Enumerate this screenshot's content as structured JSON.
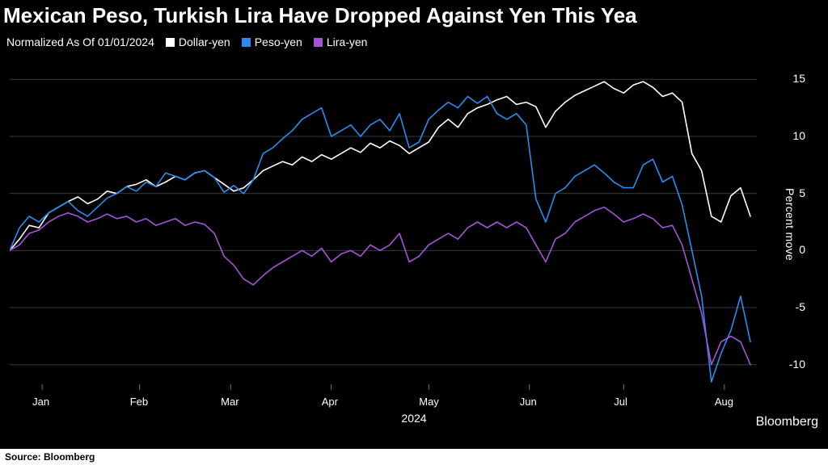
{
  "title": "Mexican Peso, Turkish Lira Have Dropped Against Yen This Yea",
  "subtitle": "Normalized As Of 01/01/2024",
  "legend": {
    "items": [
      {
        "label": "Dollar-yen",
        "color": "#ffffff"
      },
      {
        "label": "Peso-yen",
        "color": "#2a8cf0"
      },
      {
        "label": "Lira-yen",
        "color": "#a554d8"
      }
    ]
  },
  "source_label": "Source: Bloomberg",
  "brand": "Bloomberg",
  "chart": {
    "type": "line",
    "background_color": "#000000",
    "grid_color": "#3a3a3a",
    "grid_width": 1,
    "line_width": 1.6,
    "title_fontsize": 26,
    "label_fontsize": 14,
    "tick_fontsize": 14,
    "x": {
      "domain": [
        0,
        230
      ],
      "ticks": [
        {
          "pos": 10,
          "label": "Jan"
        },
        {
          "pos": 40,
          "label": "Feb"
        },
        {
          "pos": 68,
          "label": "Mar"
        },
        {
          "pos": 99,
          "label": "Apr"
        },
        {
          "pos": 129,
          "label": "May"
        },
        {
          "pos": 160,
          "label": "Jun"
        },
        {
          "pos": 189,
          "label": "Jul"
        },
        {
          "pos": 220,
          "label": "Aug"
        }
      ],
      "year_label": "2024"
    },
    "y": {
      "domain": [
        -12,
        17
      ],
      "ticks": [
        15,
        10,
        5,
        0,
        -5,
        -10
      ],
      "axis_label": "Percent move"
    },
    "series": [
      {
        "name": "Dollar-yen",
        "color": "#ffffff",
        "x": [
          0,
          3,
          6,
          9,
          12,
          15,
          18,
          21,
          24,
          27,
          30,
          33,
          36,
          39,
          42,
          45,
          48,
          51,
          54,
          57,
          60,
          63,
          66,
          69,
          72,
          75,
          78,
          81,
          84,
          87,
          90,
          93,
          96,
          99,
          102,
          105,
          108,
          111,
          114,
          117,
          120,
          123,
          126,
          129,
          132,
          135,
          138,
          141,
          144,
          147,
          150,
          153,
          156,
          159,
          162,
          165,
          168,
          171,
          174,
          177,
          180,
          183,
          186,
          189,
          192,
          195,
          198,
          201,
          204,
          207,
          210,
          213,
          216,
          219,
          222,
          225,
          228
        ],
        "y": [
          0,
          1.0,
          2.2,
          2.0,
          3.3,
          3.8,
          4.3,
          4.7,
          4.1,
          4.5,
          5.2,
          5.0,
          5.6,
          5.8,
          6.2,
          5.6,
          6.0,
          6.5,
          6.2,
          6.8,
          7.0,
          6.4,
          5.8,
          5.2,
          5.5,
          6.2,
          7.0,
          7.4,
          7.8,
          7.5,
          8.2,
          7.8,
          8.4,
          8.0,
          8.5,
          9.0,
          8.6,
          9.4,
          9.0,
          9.6,
          9.2,
          8.5,
          9.0,
          9.5,
          10.8,
          11.5,
          10.8,
          12.0,
          12.5,
          12.8,
          13.2,
          13.5,
          12.8,
          13.0,
          12.6,
          10.8,
          12.2,
          13.0,
          13.6,
          14.0,
          14.4,
          14.8,
          14.2,
          13.8,
          14.5,
          14.8,
          14.3,
          13.5,
          13.8,
          13.0,
          8.5,
          7.0,
          3.0,
          2.5,
          4.8,
          5.5,
          3.0
        ],
        "_comment": "approximated from gridlines"
      },
      {
        "name": "Peso-yen",
        "color": "#2a8cf0",
        "x": [
          0,
          3,
          6,
          9,
          12,
          15,
          18,
          21,
          24,
          27,
          30,
          33,
          36,
          39,
          42,
          45,
          48,
          51,
          54,
          57,
          60,
          63,
          66,
          69,
          72,
          75,
          78,
          81,
          84,
          87,
          90,
          93,
          96,
          99,
          102,
          105,
          108,
          111,
          114,
          117,
          120,
          123,
          126,
          129,
          132,
          135,
          138,
          141,
          144,
          147,
          150,
          153,
          156,
          159,
          162,
          165,
          168,
          171,
          174,
          177,
          180,
          183,
          186,
          189,
          192,
          195,
          198,
          201,
          204,
          207,
          210,
          213,
          216,
          219,
          222,
          225,
          228
        ],
        "y": [
          0,
          2.0,
          3.0,
          2.5,
          3.3,
          3.8,
          4.3,
          3.5,
          3.0,
          3.8,
          4.6,
          5.0,
          5.6,
          5.2,
          6.0,
          5.6,
          6.8,
          6.5,
          6.2,
          6.8,
          7.0,
          6.4,
          5.1,
          5.7,
          5.0,
          6.2,
          8.5,
          9.0,
          9.8,
          10.5,
          11.5,
          12.0,
          12.5,
          10.0,
          10.5,
          11.0,
          10.0,
          11.0,
          11.5,
          10.5,
          12.0,
          9.0,
          9.5,
          11.5,
          12.3,
          13.0,
          12.5,
          13.5,
          12.9,
          13.5,
          12.0,
          11.5,
          12.0,
          11.0,
          4.5,
          2.5,
          5.0,
          5.5,
          6.5,
          7.0,
          7.5,
          6.8,
          6.0,
          5.5,
          5.5,
          7.5,
          8.0,
          6.0,
          6.5,
          4.0,
          0.0,
          -4.0,
          -11.5,
          -9.0,
          -7.0,
          -4.0,
          -8.0
        ],
        "_comment": "approximated"
      },
      {
        "name": "Lira-yen",
        "color": "#a554d8",
        "x": [
          0,
          3,
          6,
          9,
          12,
          15,
          18,
          21,
          24,
          27,
          30,
          33,
          36,
          39,
          42,
          45,
          48,
          51,
          54,
          57,
          60,
          63,
          66,
          69,
          72,
          75,
          78,
          81,
          84,
          87,
          90,
          93,
          96,
          99,
          102,
          105,
          108,
          111,
          114,
          117,
          120,
          123,
          126,
          129,
          132,
          135,
          138,
          141,
          144,
          147,
          150,
          153,
          156,
          159,
          162,
          165,
          168,
          171,
          174,
          177,
          180,
          183,
          186,
          189,
          192,
          195,
          198,
          201,
          204,
          207,
          210,
          213,
          216,
          219,
          222,
          225,
          228
        ],
        "y": [
          0,
          0.5,
          1.5,
          1.8,
          2.5,
          3.0,
          3.3,
          3.0,
          2.5,
          2.8,
          3.2,
          2.8,
          3.0,
          2.5,
          2.8,
          2.2,
          2.5,
          2.8,
          2.2,
          2.5,
          2.3,
          1.5,
          -0.5,
          -1.3,
          -2.5,
          -3.0,
          -2.2,
          -1.5,
          -1.0,
          -0.5,
          0.0,
          -0.5,
          0.2,
          -1.0,
          -0.3,
          0.0,
          -0.5,
          0.5,
          0.0,
          0.5,
          1.5,
          -1.0,
          -0.5,
          0.5,
          1.0,
          1.5,
          1.0,
          2.0,
          2.5,
          2.0,
          2.5,
          2.0,
          2.5,
          2.0,
          0.5,
          -1.0,
          1.0,
          1.5,
          2.5,
          3.0,
          3.5,
          3.8,
          3.2,
          2.5,
          2.8,
          3.2,
          2.8,
          2.0,
          2.2,
          0.5,
          -2.5,
          -5.5,
          -10.0,
          -8.0,
          -7.5,
          -8.0,
          -10.0
        ],
        "_comment": "approximated"
      }
    ]
  }
}
